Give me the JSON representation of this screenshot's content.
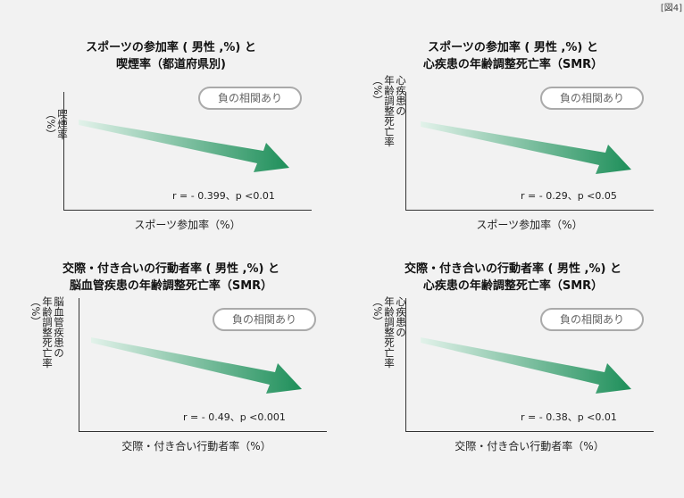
{
  "figure_label": "[図4]",
  "panels": [
    {
      "title_line1": "スポーツの参加率 ( 男性 ,%) と",
      "title_line2": "喫煙率（都道府県別)",
      "ylabel": "喫煙率\n（%）",
      "xlabel": "スポーツ参加率（%）",
      "badge": "負の相関あり",
      "stat": "r = - 0.399、p <0.01",
      "r": -0.399
    },
    {
      "title_line1": "スポーツの参加率 ( 男性 ,%) と",
      "title_line2": "心疾患の年齢調整死亡率（SMR）",
      "ylabel": "心疾患の\n年齢調整死亡率\n（%）",
      "xlabel": "スポーツ参加率（%）",
      "badge": "負の相関あり",
      "stat": "r = - 0.29、p <0.05",
      "r": -0.29
    },
    {
      "title_line1": "交際・付き合いの行動者率 ( 男性 ,%) と",
      "title_line2": "脳血管疾患の年齢調整死亡率（SMR）",
      "ylabel": "脳血管疾患の\n年齢調整死亡率\n（%）",
      "xlabel": "交際・付き合い行動者率（%）",
      "badge": "負の相関あり",
      "stat": "r = - 0.49、p <0.001",
      "r": -0.49
    },
    {
      "title_line1": "交際・付き合いの行動者率 ( 男性 ,%) と",
      "title_line2": "心疾患の年齢調整死亡率（SMR）",
      "ylabel": "心疾患の\n年齢調整死亡率\n（%）",
      "xlabel": "交際・付き合い行動者率（%）",
      "badge": "負の相関あり",
      "stat": "r = - 0.38、p <0.01",
      "r": -0.38
    }
  ],
  "colors": {
    "arrow_start": "#e2f2ea",
    "arrow_end": "#1e8f5a",
    "background": "#f2f2f2"
  }
}
